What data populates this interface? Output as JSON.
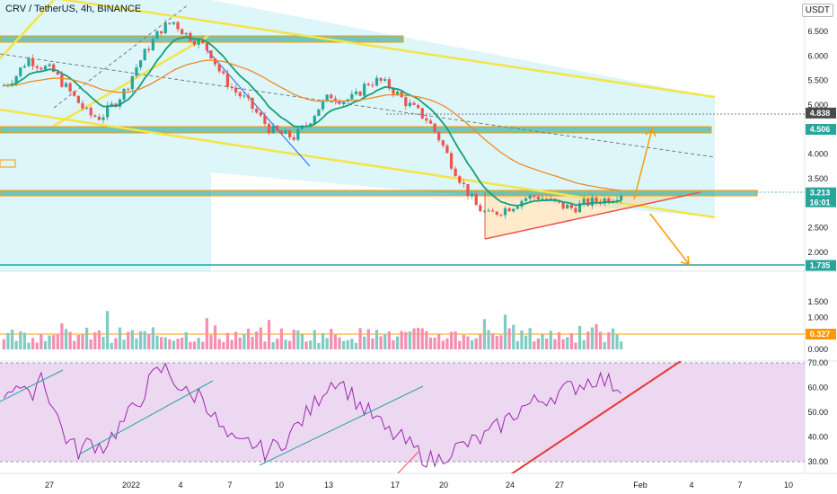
{
  "title": "CRV / TetherUS, 4h, BINANCE",
  "currency_badge": "USDT",
  "chart_data": [
    {
      "type": "candlestick",
      "panel": "price",
      "y_ticks": [
        "6.500",
        "6.000",
        "5.500",
        "5.000",
        "4.500",
        "4.000",
        "3.500",
        "3.000",
        "2.500",
        "2.000"
      ],
      "ylim": [
        1.6,
        7.2
      ],
      "x_ticks": [
        "27",
        "2022",
        "4",
        "7",
        "10",
        "13",
        "17",
        "20",
        "24",
        "27",
        "Feb",
        "4",
        "7",
        "10"
      ],
      "price_labels": [
        {
          "value": "4.838",
          "color": "#4a4a4a"
        },
        {
          "value": "4.506",
          "color": "#26a69a"
        },
        {
          "value": "3.213",
          "sub": "16:01",
          "color": "#26a69a"
        },
        {
          "value": "1.735",
          "color": "#26a69a"
        }
      ],
      "close_path": [
        5.4,
        5.6,
        5.95,
        5.8,
        5.7,
        5.4,
        5.1,
        4.8,
        4.75,
        5.0,
        5.3,
        5.8,
        6.2,
        6.55,
        6.7,
        6.45,
        6.3,
        6.1,
        5.6,
        5.3,
        5.1,
        4.8,
        4.5,
        4.4,
        4.35,
        4.6,
        4.95,
        5.2,
        5.1,
        5.15,
        5.45,
        5.5,
        5.35,
        5.1,
        4.9,
        4.7,
        4.3,
        3.8,
        3.35,
        2.95,
        2.75,
        2.85,
        2.95,
        3.1,
        3.15,
        3.05,
        2.95,
        2.9,
        3.0,
        3.05,
        3.1,
        3.213
      ],
      "support_resistance": [
        6.3,
        4.506,
        3.213,
        1.735
      ]
    },
    {
      "type": "bar",
      "panel": "volume",
      "y_ticks": [
        "1.500",
        "1.000",
        "0.500",
        "0.000"
      ],
      "current_label": "0.327",
      "ylim": [
        0,
        1.7
      ]
    },
    {
      "type": "line",
      "panel": "rsi",
      "y_ticks": [
        "70.00",
        "60.00",
        "50.00",
        "40.00",
        "30.00"
      ],
      "ylim": [
        28,
        71
      ],
      "band": [
        30,
        70
      ],
      "values": [
        58,
        62,
        55,
        66,
        52,
        40,
        34,
        38,
        36,
        42,
        48,
        55,
        64,
        68,
        62,
        56,
        58,
        48,
        40,
        36,
        38,
        34,
        36,
        40,
        46,
        52,
        60,
        64,
        58,
        52,
        48,
        42,
        40,
        36,
        32,
        30,
        34,
        36,
        38,
        40,
        44,
        48,
        52,
        54,
        56,
        58,
        60,
        62,
        64,
        62,
        60
      ]
    }
  ]
}
